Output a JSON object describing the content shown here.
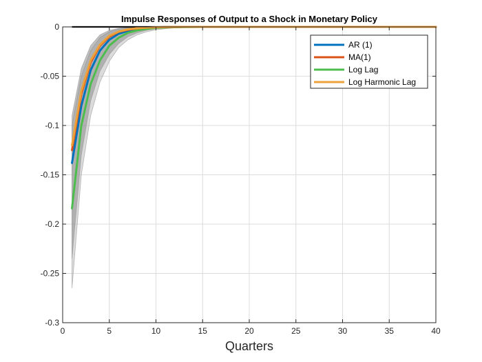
{
  "chart_data": {
    "type": "line",
    "title": "Impulse Responses of Output to a Shock in Monetary Policy",
    "xlabel": "Quarters",
    "ylabel": "",
    "xlim": [
      0,
      40
    ],
    "ylim": [
      -0.3,
      0
    ],
    "xticks": [
      0,
      5,
      10,
      15,
      20,
      25,
      30,
      35,
      40
    ],
    "yticks": [
      0,
      -0.05,
      -0.1,
      -0.15,
      -0.2,
      -0.25,
      -0.3
    ],
    "xtick_labels": [
      "0",
      "5",
      "10",
      "15",
      "20",
      "25",
      "30",
      "35",
      "40"
    ],
    "ytick_labels": [
      "0",
      "-0.05",
      "-0.1",
      "-0.15",
      "-0.2",
      "-0.25",
      "-0.3"
    ],
    "grid": true,
    "legend_position": "top-right",
    "zero_line_color": "#000000",
    "x": [
      1,
      2,
      3,
      4,
      5,
      6,
      7,
      8,
      9,
      10,
      11,
      12,
      13,
      14,
      15,
      16,
      17,
      18,
      19,
      20,
      21,
      22,
      23,
      24,
      25,
      26,
      27,
      28,
      29,
      30,
      31,
      32,
      33,
      34,
      35,
      36,
      37,
      38,
      39,
      40
    ],
    "series": [
      {
        "name": "AR (1)",
        "color": "#0072BD",
        "values": [
          -0.138,
          -0.08,
          -0.044,
          -0.024,
          -0.013,
          -0.007,
          -0.004,
          -0.002,
          -0.001,
          -0.0005,
          -0.0002,
          -0.0001,
          0,
          0,
          0,
          0,
          0,
          0,
          0,
          0,
          0,
          0,
          0,
          0,
          0,
          0,
          0,
          0,
          0,
          0,
          0,
          0,
          0,
          0,
          0,
          0,
          0,
          0,
          0,
          0
        ]
      },
      {
        "name": "MA(1)",
        "color": "#D95319",
        "values": [
          -0.125,
          -0.068,
          -0.036,
          -0.019,
          -0.01,
          -0.005,
          -0.003,
          -0.0015,
          -0.0008,
          -0.0004,
          -0.0002,
          -0.0001,
          0,
          0,
          0,
          0,
          0,
          0,
          0,
          0,
          0,
          0,
          0,
          0,
          0,
          0,
          0,
          0,
          0,
          0,
          0,
          0,
          0,
          0,
          0,
          0,
          0,
          0,
          0,
          0
        ]
      },
      {
        "name": "Log Lag",
        "color": "#4DBD4D",
        "values": [
          -0.184,
          -0.1,
          -0.058,
          -0.034,
          -0.019,
          -0.011,
          -0.006,
          -0.0035,
          -0.002,
          -0.001,
          -0.0006,
          -0.0003,
          -0.0002,
          -0.0001,
          0,
          0,
          0,
          0,
          0,
          0,
          0,
          0,
          0,
          0,
          0,
          0,
          0,
          0,
          0,
          0,
          0,
          0,
          0,
          0,
          0,
          0,
          0,
          0,
          0,
          0
        ]
      },
      {
        "name": "Log Harmonic Lag",
        "color": "#EDA239",
        "values": [
          -0.12,
          -0.065,
          -0.034,
          -0.018,
          -0.009,
          -0.0048,
          -0.0025,
          -0.0013,
          -0.0007,
          -0.0004,
          -0.0002,
          -0.0001,
          0,
          0,
          0,
          0,
          0,
          0,
          0,
          0,
          0,
          0,
          0,
          0,
          0,
          0,
          0,
          0,
          0,
          0,
          0,
          0,
          0,
          0,
          0,
          0,
          0,
          0,
          0,
          0
        ]
      }
    ],
    "bands": [
      {
        "color": "#bdbdbd",
        "opacity": 0.55,
        "upper": [
          -0.1,
          -0.05,
          -0.024,
          -0.011,
          -0.005,
          -0.002,
          -0.001,
          -0.0004,
          -0.0002,
          -0.0001,
          0,
          0,
          0,
          0,
          0
        ],
        "lower": [
          -0.265,
          -0.15,
          -0.09,
          -0.056,
          -0.035,
          -0.021,
          -0.013,
          -0.008,
          -0.005,
          -0.003,
          -0.0018,
          -0.0011,
          -0.0007,
          -0.0004,
          -0.0002
        ]
      },
      {
        "color": "#8c8c8c",
        "opacity": 0.55,
        "upper": [
          -0.09,
          -0.042,
          -0.019,
          -0.008,
          -0.0035,
          -0.0015,
          -0.0006,
          -0.0003,
          -0.0001,
          0,
          0,
          0,
          0,
          0,
          0
        ],
        "lower": [
          -0.235,
          -0.13,
          -0.075,
          -0.045,
          -0.028,
          -0.017,
          -0.01,
          -0.006,
          -0.0035,
          -0.002,
          -0.0012,
          -0.0007,
          -0.0004,
          -0.0002,
          -0.0001
        ]
      }
    ]
  }
}
